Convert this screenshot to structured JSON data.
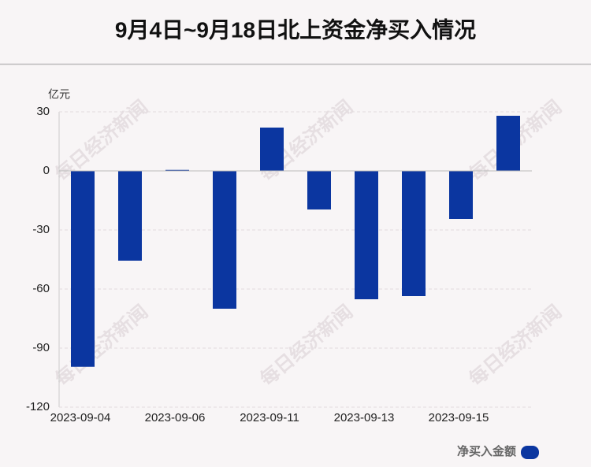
{
  "chart_data": {
    "type": "bar",
    "title": "9月4日~9月18日北上资金净买入情况",
    "y_unit": "亿元",
    "watermark": "每日经济新闻",
    "categories": [
      "2023-09-04",
      null,
      "2023-09-06",
      null,
      "2023-09-11",
      null,
      "2023-09-13",
      null,
      "2023-09-15",
      null
    ],
    "series": [
      {
        "name": "净买入金额",
        "color": "#0b36a0",
        "values": [
          -99.5,
          -45.6,
          0.5,
          -70,
          22,
          -19.6,
          -65.2,
          -63.6,
          -24.4,
          28
        ]
      }
    ],
    "ylim": [
      -120,
      30
    ],
    "yticks": [
      30,
      0,
      -30,
      -60,
      -90,
      -120
    ],
    "grid": true,
    "legend": "bottom-right"
  }
}
